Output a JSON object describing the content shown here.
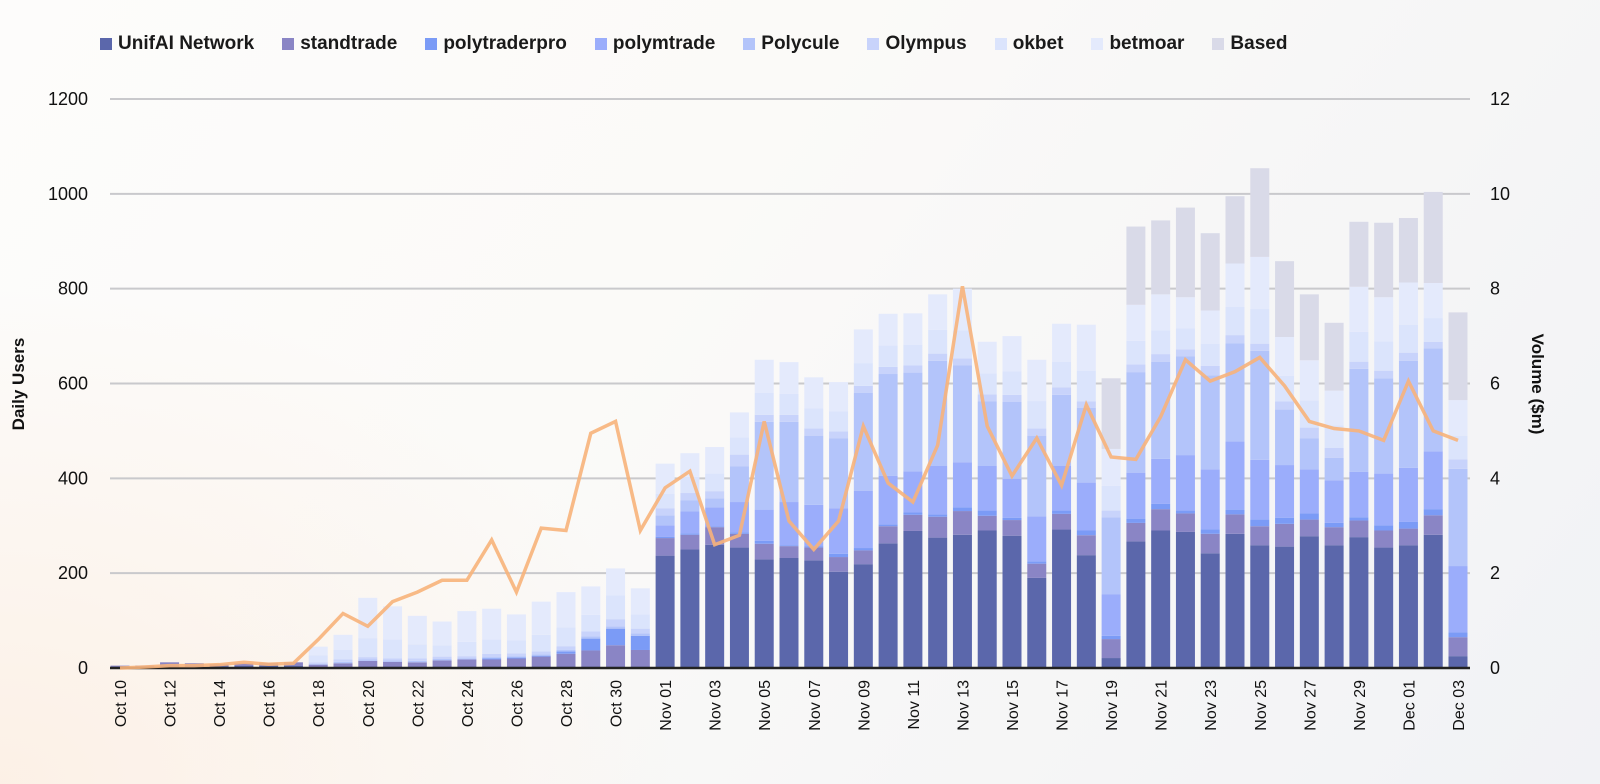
{
  "chart_data": {
    "type": "bar",
    "stacked": true,
    "ylabel": "Daily Users",
    "y2label": "Volume ($m)",
    "ylim": [
      0,
      1200
    ],
    "y2lim": [
      0,
      12
    ],
    "yticks": [
      "0",
      "200",
      "400",
      "600",
      "800",
      "1000",
      "1200"
    ],
    "y2ticks": [
      "0",
      "2",
      "4",
      "6",
      "8",
      "10",
      "12"
    ],
    "grid": true,
    "legend_position": "top",
    "categories": [
      "Oct 10",
      "Oct 11",
      "Oct 12",
      "Oct 13",
      "Oct 14",
      "Oct 15",
      "Oct 16",
      "Oct 17",
      "Oct 18",
      "Oct 19",
      "Oct 20",
      "Oct 21",
      "Oct 22",
      "Oct 23",
      "Oct 24",
      "Oct 25",
      "Oct 26",
      "Oct 27",
      "Oct 28",
      "Oct 29",
      "Oct 30",
      "Oct 31",
      "Nov 01",
      "Nov 02",
      "Nov 03",
      "Nov 04",
      "Nov 05",
      "Nov 06",
      "Nov 07",
      "Nov 08",
      "Nov 09",
      "Nov 10",
      "Nov 11",
      "Nov 12",
      "Nov 13",
      "Nov 14",
      "Nov 15",
      "Nov 16",
      "Nov 17",
      "Nov 18",
      "Nov 19",
      "Nov 20",
      "Nov 21",
      "Nov 22",
      "Nov 23",
      "Nov 24",
      "Nov 25",
      "Nov 26",
      "Nov 27",
      "Nov 28",
      "Nov 29",
      "Nov 30",
      "Dec 01",
      "Dec 02",
      "Dec 03"
    ],
    "xtick_labels": [
      "Oct 10",
      "Oct 12",
      "Oct 14",
      "Oct 16",
      "Oct 18",
      "Oct 20",
      "Oct 22",
      "Oct 24",
      "Oct 26",
      "Oct 28",
      "Oct 30",
      "Nov 01",
      "Nov 03",
      "Nov 05",
      "Nov 07",
      "Nov 09",
      "Nov 11",
      "Nov 13",
      "Nov 15",
      "Nov 17",
      "Nov 19",
      "Nov 21",
      "Nov 23",
      "Nov 25",
      "Nov 27",
      "Nov 29",
      "Dec 01",
      "Dec 03"
    ],
    "series": [
      {
        "name": "UnifAI Network",
        "color": "#5b67ab",
        "values": [
          3,
          3,
          6,
          5,
          4,
          5,
          5,
          5,
          2,
          2,
          3,
          3,
          3,
          3,
          3,
          3,
          3,
          3,
          3,
          3,
          3,
          3,
          237,
          250,
          260,
          254,
          229,
          232,
          227,
          203,
          219,
          263,
          289,
          275,
          281,
          290,
          279,
          190,
          292,
          238,
          21,
          267,
          290,
          287,
          242,
          283,
          259,
          256,
          278,
          259,
          276,
          254,
          259,
          281,
          25
        ]
      },
      {
        "name": "standtrade",
        "color": "#8a85c5",
        "values": [
          2,
          2,
          6,
          5,
          4,
          5,
          6,
          7,
          5,
          8,
          12,
          10,
          9,
          13,
          15,
          15,
          17,
          21,
          27,
          34,
          45,
          35,
          37,
          31,
          37,
          29,
          33,
          25,
          27,
          31,
          29,
          36,
          34,
          44,
          50,
          31,
          33,
          30,
          33,
          42,
          40,
          39,
          45,
          39,
          41,
          41,
          40,
          48,
          35,
          38,
          35,
          36,
          35,
          41,
          40
        ]
      },
      {
        "name": "polytraderpro",
        "color": "#7b9bf6",
        "values": [
          0,
          0,
          0,
          0,
          0,
          0,
          0,
          0,
          0,
          0,
          0,
          0,
          0,
          0,
          0,
          2,
          2,
          2,
          5,
          25,
          35,
          30,
          3,
          3,
          2,
          3,
          6,
          2,
          3,
          7,
          5,
          4,
          5,
          5,
          8,
          11,
          5,
          5,
          7,
          10,
          7,
          9,
          11,
          6,
          9,
          10,
          14,
          13,
          13,
          9,
          7,
          11,
          14,
          13,
          10
        ]
      },
      {
        "name": "polymtrade",
        "color": "#9badfb",
        "values": [
          0,
          0,
          0,
          0,
          0,
          0,
          0,
          0,
          0,
          0,
          0,
          0,
          0,
          0,
          0,
          0,
          0,
          0,
          0,
          0,
          0,
          0,
          24,
          46,
          40,
          64,
          66,
          91,
          87,
          96,
          121,
          102,
          87,
          102,
          95,
          94,
          82,
          95,
          94,
          101,
          87,
          97,
          95,
          117,
          127,
          144,
          126,
          111,
          93,
          90,
          96,
          109,
          114,
          122,
          140
        ]
      },
      {
        "name": "Polycule",
        "color": "#b3c4fa",
        "values": [
          0,
          0,
          0,
          0,
          0,
          0,
          0,
          0,
          2,
          3,
          3,
          3,
          3,
          3,
          2,
          3,
          3,
          3,
          3,
          5,
          5,
          5,
          21,
          24,
          19,
          75,
          185,
          169,
          146,
          147,
          206,
          215,
          208,
          222,
          204,
          136,
          162,
          170,
          150,
          158,
          163,
          212,
          205,
          208,
          198,
          207,
          230,
          117,
          65,
          47,
          217,
          201,
          226,
          217,
          205
        ]
      },
      {
        "name": "Olympus",
        "color": "#c8d3fb",
        "values": [
          0,
          0,
          0,
          0,
          0,
          0,
          0,
          0,
          3,
          5,
          5,
          4,
          5,
          5,
          5,
          7,
          6,
          6,
          8,
          10,
          15,
          10,
          15,
          15,
          15,
          25,
          15,
          15,
          15,
          15,
          15,
          15,
          15,
          15,
          15,
          15,
          15,
          15,
          16,
          13,
          14,
          16,
          16,
          15,
          20,
          17,
          15,
          17,
          23,
          21,
          15,
          16,
          17,
          14,
          20
        ]
      },
      {
        "name": "okbet",
        "color": "#dbe4fc",
        "values": [
          0,
          0,
          0,
          0,
          0,
          0,
          0,
          0,
          15,
          20,
          40,
          40,
          30,
          24,
          30,
          30,
          27,
          35,
          40,
          35,
          50,
          30,
          30,
          34,
          37,
          36,
          46,
          44,
          43,
          42,
          48,
          45,
          44,
          50,
          59,
          44,
          50,
          58,
          54,
          65,
          52,
          50,
          50,
          44,
          47,
          60,
          73,
          54,
          57,
          48,
          63,
          62,
          59,
          50,
          50
        ]
      },
      {
        "name": "betmoar",
        "color": "#e4eafc",
        "values": [
          0,
          0,
          0,
          0,
          0,
          0,
          0,
          0,
          18,
          32,
          85,
          70,
          60,
          50,
          65,
          65,
          55,
          70,
          74,
          60,
          57,
          55,
          64,
          50,
          56,
          53,
          70,
          67,
          65,
          62,
          71,
          67,
          66,
          75,
          88,
          67,
          74,
          87,
          80,
          97,
          78,
          76,
          76,
          66,
          70,
          91,
          110,
          82,
          85,
          73,
          95,
          93,
          89,
          74,
          75
        ]
      },
      {
        "name": "Based",
        "color": "#d9dae8",
        "values": [
          0,
          0,
          0,
          0,
          0,
          0,
          0,
          0,
          0,
          0,
          0,
          0,
          0,
          0,
          0,
          0,
          0,
          0,
          0,
          0,
          0,
          0,
          0,
          0,
          0,
          0,
          0,
          0,
          0,
          0,
          0,
          0,
          0,
          0,
          0,
          0,
          0,
          0,
          0,
          0,
          149,
          165,
          156,
          189,
          163,
          142,
          187,
          160,
          139,
          143,
          137,
          157,
          136,
          192,
          185
        ]
      }
    ],
    "line_series": {
      "name": "Volume ($m)",
      "axis": "right",
      "color": "#f7b27a",
      "values": [
        0,
        0.02,
        0.05,
        0.05,
        0.07,
        0.12,
        0.08,
        0.1,
        0.6,
        1.15,
        0.88,
        1.4,
        1.6,
        1.85,
        1.85,
        2.7,
        1.6,
        2.95,
        2.9,
        4.95,
        5.2,
        2.9,
        3.8,
        4.15,
        2.6,
        2.8,
        5.2,
        3.1,
        2.5,
        3.1,
        5.1,
        3.9,
        3.5,
        4.7,
        8.05,
        5.1,
        4.05,
        4.85,
        3.85,
        5.55,
        4.45,
        4.4,
        5.3,
        6.5,
        6.05,
        6.25,
        6.55,
        5.95,
        5.2,
        5.05,
        5.0,
        4.8,
        6.05,
        5.0,
        4.8
      ]
    }
  }
}
